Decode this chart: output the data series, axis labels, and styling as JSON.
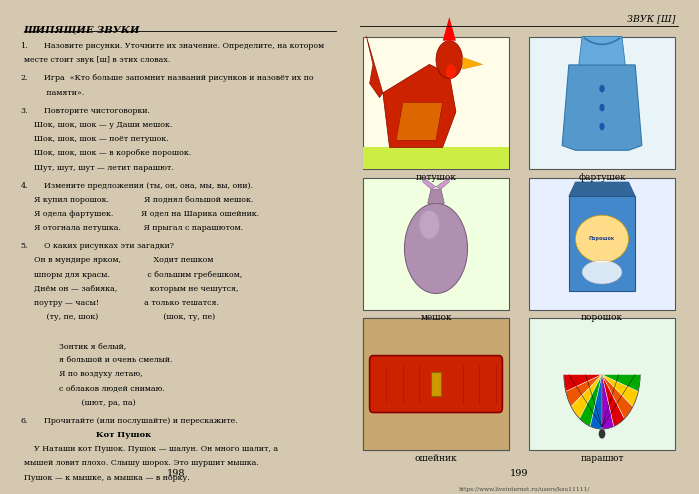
{
  "bg_color": "#d4c9b0",
  "page_bg": "#ffffff",
  "left_title": "ШИПЯЩИЕ ЗВУКИ",
  "right_title": "ЗВУК [Ш]",
  "left_page_num": "198",
  "right_page_num": "199",
  "footer_url": "https://www.liveinternet.ru/users/ksu11111/",
  "sections": [
    {
      "num": "1.",
      "lines": [
        "Назовите рисунки. Уточните их значение. Определите, на котором",
        "месте стоит звук [ш] в этих словах."
      ]
    },
    {
      "num": "2.",
      "lines": [
        "Игра  «Кто больше запомнит названий рисунков и назовёт их по",
        "         памяти»."
      ]
    },
    {
      "num": "3.",
      "lines": [
        "Повторите чистоговорки.",
        "    Шок, шок, шок — у Даши мешок.",
        "    Шок, шок, шок — поёт петушок.",
        "    Шок, шок, шок — в коробке порошок.",
        "    Шут, шут, шут — летит парашют."
      ]
    },
    {
      "num": "4.",
      "lines": [
        "Измените предложения (ты, он, она, мы, вы, они).",
        "    Я купил порошок.              Я поднял большой мешок.",
        "    Я одела фартушек.           Я одел на Шарика ошейник.",
        "    Я отогнала петушка.         Я прыгал с парашютом."
      ]
    },
    {
      "num": "5.",
      "lines": [
        "О каких рисунках эти загадки?",
        "    Он в мундире ярком,             Ходит пешком",
        "    шпоры для красы.               с большим гребешком,",
        "    Днём он — забияка,             которым не чешутся,",
        "    поутру — часы!                  а только тешатся.",
        "         (ту, пе, шок)                          (шок, ту, пе)",
        "",
        "              Зонтик я белый,",
        "              я большой и очень смелый.",
        "              Я по воздуху летаю,",
        "              с облаков людей снимаю.",
        "                       (шют, ра, па)"
      ]
    },
    {
      "num": "6.",
      "lines": [
        "Прочитайте (или послушайте) и перескажите.",
        "                         Кот Пушок",
        "    У Наташи кот Пушок. Пушок — шалун. Он много шалит, а",
        "мышей ловит плохо. Слышу шорох. Это шуршит мышка.",
        "Пушок — к мышке, а мышка — в норку."
      ]
    }
  ],
  "image_labels": [
    "петушок",
    "фартушек",
    "мешок",
    "порошок",
    "ошейник",
    "парашют"
  ],
  "image_colors": [
    "#fffde7",
    "#e8f4f8",
    "#f0ffe0",
    "#e8f0ff",
    "#f5e8d0",
    "#e8f8e8"
  ]
}
